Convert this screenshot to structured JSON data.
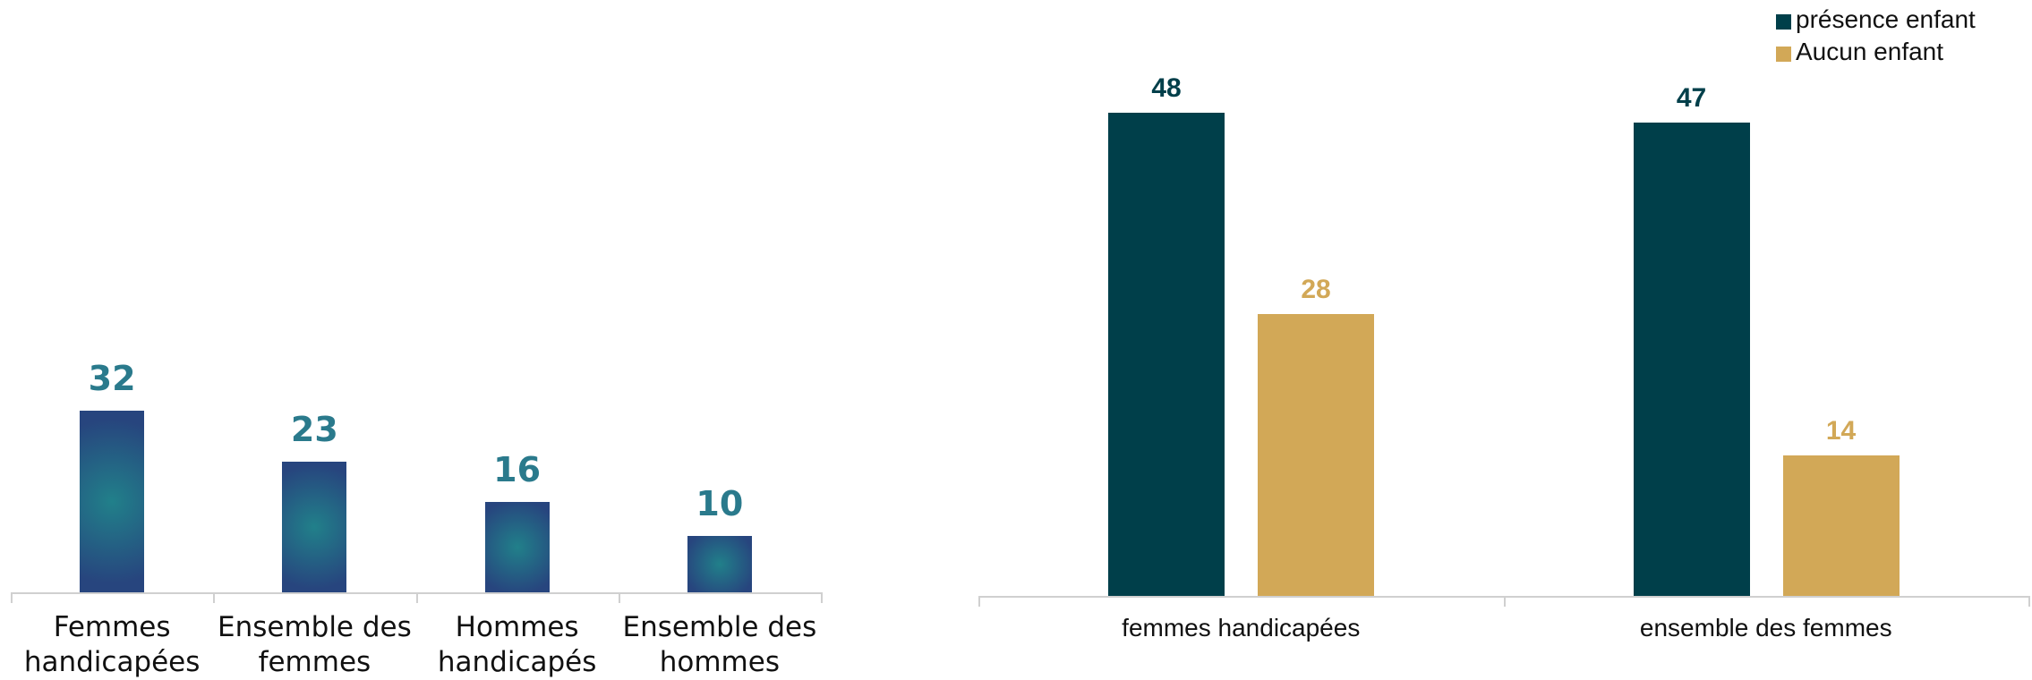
{
  "chart_data": [
    {
      "type": "bar",
      "categories": [
        "Femmes handicapées",
        "Ensemble des femmes",
        "Hommes handicapés",
        "Ensemble des hommes"
      ],
      "values": [
        32,
        23,
        16,
        10
      ],
      "color": "#27457e"
    },
    {
      "type": "grouped_bar",
      "categories": [
        "femmes handicapées",
        "ensemble des femmes"
      ],
      "series": [
        {
          "name": "présence enfant",
          "color": "#003f4a",
          "values": [
            48,
            47
          ]
        },
        {
          "name": "Aucun enfant",
          "color": "#d2a857",
          "values": [
            28,
            14
          ]
        }
      ],
      "legend": "top-right"
    }
  ]
}
